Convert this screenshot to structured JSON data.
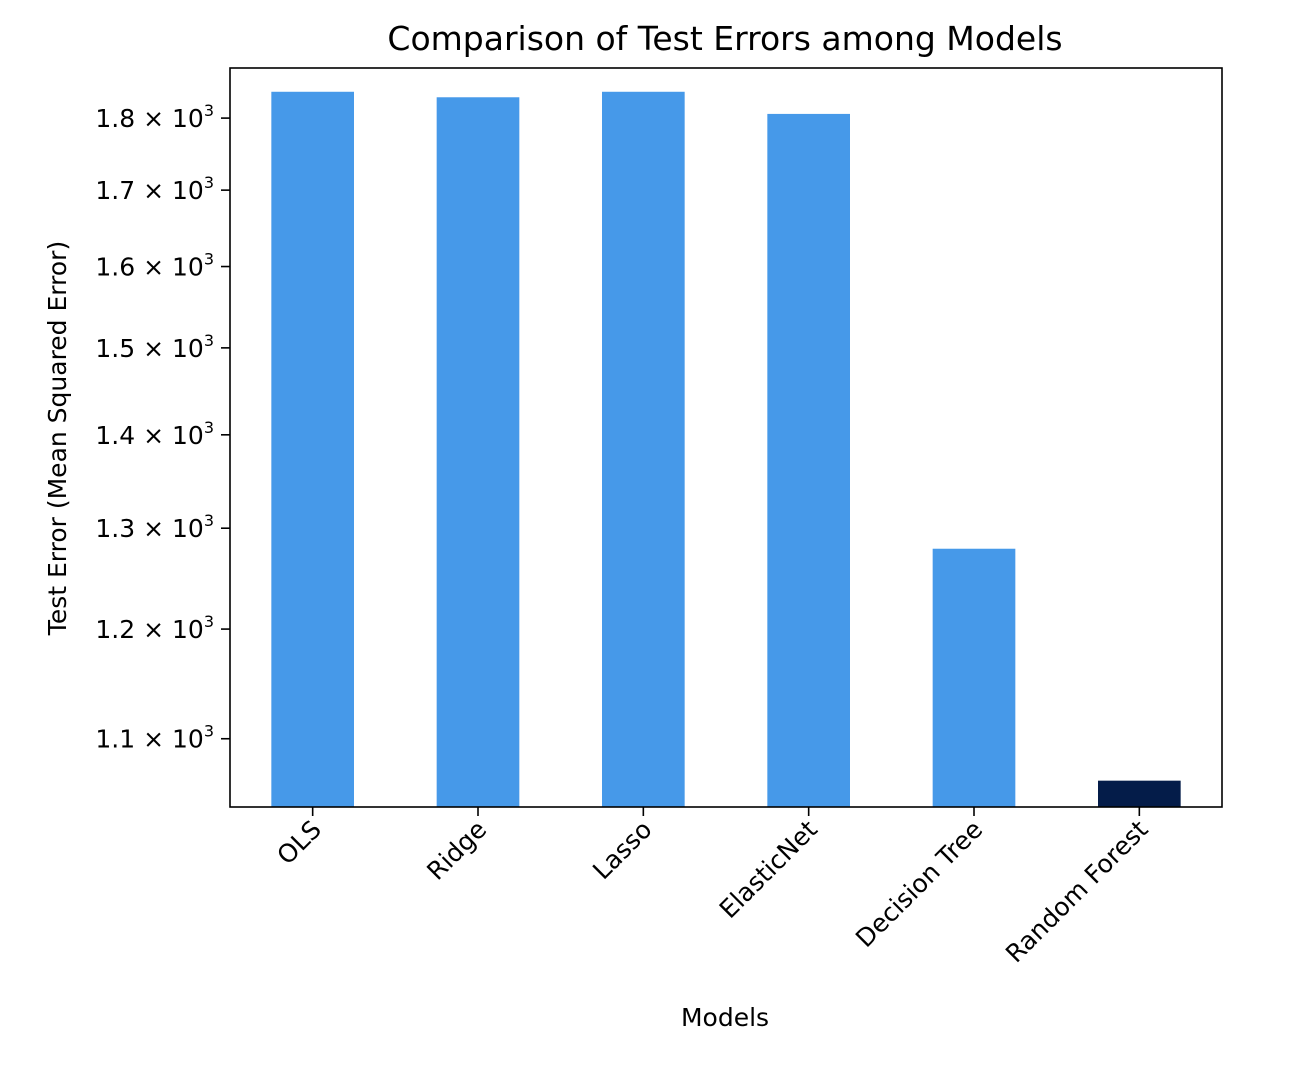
{
  "chart_data": {
    "type": "bar",
    "title": "Comparison of Test Errors among Models",
    "xlabel": "Models",
    "ylabel": "Test Error (Mean Squared Error)",
    "yscale": "log",
    "ylim": [
      1042,
      1873
    ],
    "categories": [
      "OLS",
      "Ridge",
      "Lasso",
      "ElasticNet",
      "Decision Tree",
      "Random Forest"
    ],
    "values": [
      1838,
      1830,
      1838,
      1806,
      1279,
      1064
    ],
    "colors": [
      "#4699E9",
      "#4699E9",
      "#4699E9",
      "#4699E9",
      "#4699E9",
      "#041C49"
    ],
    "y_ticks": [
      {
        "value": 1100,
        "mantissa": "1.1",
        "times": "×",
        "base": "10",
        "exp": "3"
      },
      {
        "value": 1200,
        "mantissa": "1.2",
        "times": "×",
        "base": "10",
        "exp": "3"
      },
      {
        "value": 1300,
        "mantissa": "1.3",
        "times": "×",
        "base": "10",
        "exp": "3"
      },
      {
        "value": 1400,
        "mantissa": "1.4",
        "times": "×",
        "base": "10",
        "exp": "3"
      },
      {
        "value": 1500,
        "mantissa": "1.5",
        "times": "×",
        "base": "10",
        "exp": "3"
      },
      {
        "value": 1600,
        "mantissa": "1.6",
        "times": "×",
        "base": "10",
        "exp": "3"
      },
      {
        "value": 1700,
        "mantissa": "1.7",
        "times": "×",
        "base": "10",
        "exp": "3"
      },
      {
        "value": 1800,
        "mantissa": "1.8",
        "times": "×",
        "base": "10",
        "exp": "3"
      }
    ],
    "grid": false
  }
}
